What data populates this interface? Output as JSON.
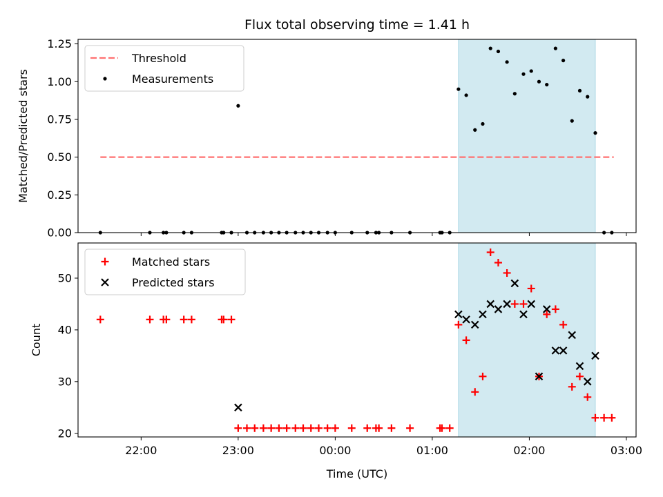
{
  "chart_data": {
    "type": "scatter",
    "title": "Flux total observing time = 1.41 h",
    "xlabel": "Time (UTC)",
    "x_unit": "hours since 00:00 UTC",
    "xlim": [
      -2.65,
      3.1
    ],
    "xticks": [
      {
        "value": -2,
        "label": "22:00"
      },
      {
        "value": -1,
        "label": "23:00"
      },
      {
        "value": 0,
        "label": "00:00"
      },
      {
        "value": 1,
        "label": "01:00"
      },
      {
        "value": 2,
        "label": "02:00"
      },
      {
        "value": 3,
        "label": "03:00"
      }
    ],
    "highlight_span": {
      "x": [
        1.27,
        2.68
      ],
      "color": "#add8e6"
    },
    "panels": [
      {
        "id": "ratio",
        "ylabel": "Matched/Predicted stars",
        "ylim": [
          0,
          1.28
        ],
        "yticks": [
          {
            "value": 0,
            "label": "0.00"
          },
          {
            "value": 0.25,
            "label": "0.25"
          },
          {
            "value": 0.5,
            "label": "0.50"
          },
          {
            "value": 0.75,
            "label": "0.75"
          },
          {
            "value": 1.0,
            "label": "1.00"
          },
          {
            "value": 1.25,
            "label": "1.25"
          }
        ],
        "legend": {
          "position": "top-left",
          "entries": [
            "Threshold",
            "Measurements"
          ]
        },
        "series": [
          {
            "name": "Threshold",
            "kind": "dashed-line",
            "color": "#ff7070",
            "x": [
              -2.42,
              2.87
            ],
            "y": [
              0.5,
              0.5
            ]
          },
          {
            "name": "Measurements",
            "kind": "dot",
            "color": "#000000",
            "x": [
              -2.42,
              -1.91,
              -1.77,
              -1.74,
              -1.56,
              -1.48,
              -1.17,
              -1.15,
              -1.07,
              -1.0,
              -0.91,
              -0.83,
              -0.74,
              -0.66,
              -0.58,
              -0.5,
              -0.41,
              -0.33,
              -0.25,
              -0.17,
              -0.08,
              0.0,
              0.17,
              0.33,
              0.42,
              0.45,
              0.58,
              0.77,
              1.08,
              1.1,
              1.18,
              1.27,
              1.35,
              1.44,
              1.52,
              1.6,
              1.68,
              1.77,
              1.85,
              1.94,
              2.02,
              2.1,
              2.18,
              2.27,
              2.35,
              2.44,
              2.52,
              2.6,
              2.68,
              2.77,
              2.85
            ],
            "y": [
              0,
              0,
              0,
              0,
              0,
              0,
              0,
              0,
              0,
              0.84,
              0,
              0,
              0,
              0,
              0,
              0,
              0,
              0,
              0,
              0,
              0,
              0,
              0,
              0,
              0,
              0,
              0,
              0,
              0,
              0,
              0,
              0.95,
              0.91,
              0.68,
              0.72,
              1.22,
              1.2,
              1.13,
              0.92,
              1.05,
              1.07,
              1.0,
              0.98,
              1.22,
              1.14,
              0.74,
              0.94,
              0.9,
              0.66,
              0,
              0
            ]
          }
        ]
      },
      {
        "id": "count",
        "ylabel": "Count",
        "ylim": [
          19.3,
          56.8
        ],
        "yticks": [
          {
            "value": 20,
            "label": "20"
          },
          {
            "value": 30,
            "label": "30"
          },
          {
            "value": 40,
            "label": "40"
          },
          {
            "value": 50,
            "label": "50"
          }
        ],
        "legend": {
          "position": "top-left",
          "entries": [
            "Matched stars",
            "Predicted stars"
          ]
        },
        "series": [
          {
            "name": "Matched stars",
            "kind": "plus",
            "color": "#ff0000",
            "x": [
              -2.42,
              -1.91,
              -1.77,
              -1.74,
              -1.56,
              -1.48,
              -1.17,
              -1.15,
              -1.07,
              -1.0,
              -0.91,
              -0.83,
              -0.74,
              -0.66,
              -0.58,
              -0.5,
              -0.41,
              -0.33,
              -0.25,
              -0.17,
              -0.08,
              0.0,
              0.17,
              0.33,
              0.42,
              0.45,
              0.58,
              0.77,
              1.08,
              1.1,
              1.18,
              1.27,
              1.35,
              1.44,
              1.52,
              1.6,
              1.68,
              1.77,
              1.85,
              1.94,
              2.02,
              2.1,
              2.18,
              2.27,
              2.35,
              2.44,
              2.52,
              2.6,
              2.68,
              2.77,
              2.85
            ],
            "y": [
              42,
              42,
              42,
              42,
              42,
              42,
              42,
              42,
              42,
              21,
              21,
              21,
              21,
              21,
              21,
              21,
              21,
              21,
              21,
              21,
              21,
              21,
              21,
              21,
              21,
              21,
              21,
              21,
              21,
              21,
              21,
              41,
              38,
              28,
              31,
              55,
              53,
              51,
              45,
              45,
              48,
              31,
              43,
              44,
              41,
              29,
              31,
              27,
              23,
              23,
              23
            ]
          },
          {
            "name": "Predicted stars",
            "kind": "x",
            "color": "#000000",
            "x": [
              -1.0,
              1.27,
              1.35,
              1.44,
              1.52,
              1.6,
              1.68,
              1.77,
              1.85,
              1.94,
              2.02,
              2.1,
              2.18,
              2.27,
              2.35,
              2.44,
              2.52,
              2.6,
              2.68
            ],
            "y": [
              25,
              43,
              42,
              41,
              43,
              45,
              44,
              45,
              49,
              43,
              45,
              31,
              44,
              36,
              36,
              39,
              33,
              30,
              35
            ]
          }
        ]
      }
    ]
  }
}
